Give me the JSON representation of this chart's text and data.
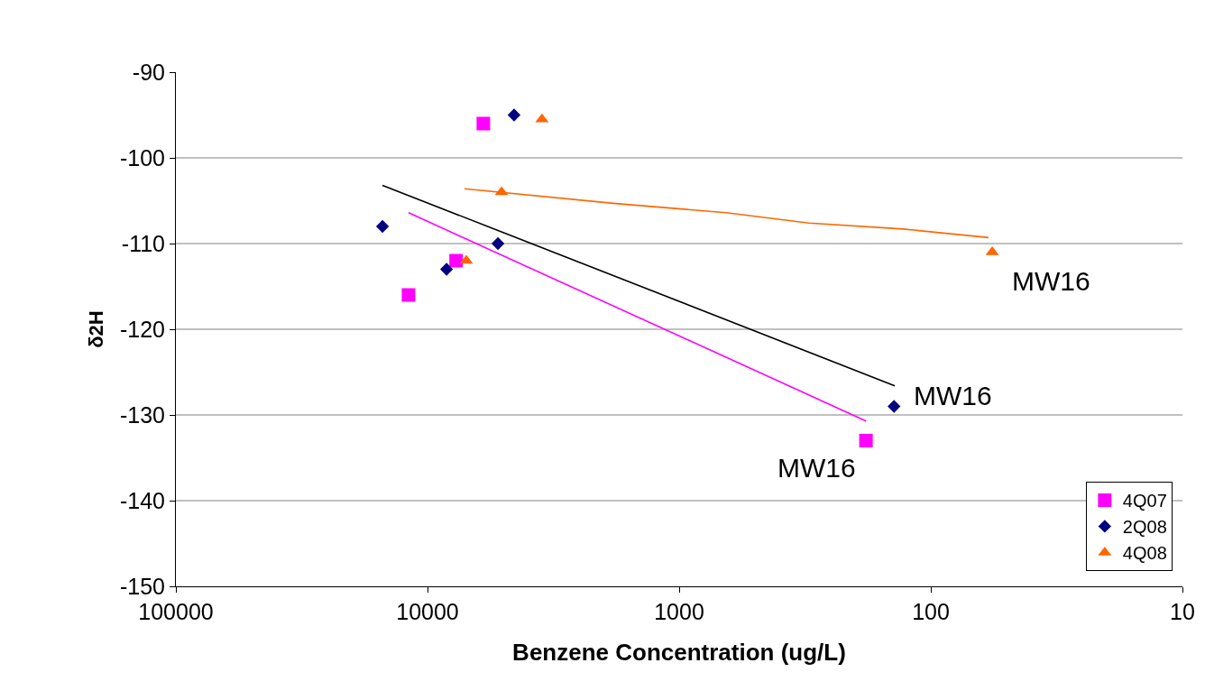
{
  "chart_data": {
    "type": "scatter",
    "xlabel": "Benzene Concentration (ug/L)",
    "ylabel": "δ2H",
    "log": "x",
    "xlim": [
      100000,
      10
    ],
    "xticks": [
      100000,
      10000,
      1000,
      100,
      10
    ],
    "ylim": [
      -150,
      -90
    ],
    "yticks": [
      -150,
      -140,
      -130,
      -120,
      -110,
      -100,
      -90
    ],
    "grid": "y",
    "legend": "bottom right",
    "series": [
      {
        "name": "4Q07",
        "color": "#ff00ff",
        "marker": "square",
        "x": [
          6000,
          11900,
          7700,
          181
        ],
        "values": [
          -96,
          -116,
          -112,
          -133
        ]
      },
      {
        "name": "2Q08",
        "color": "#000080",
        "marker": "diamond",
        "x": [
          4530,
          15100,
          5250,
          8400,
          140
        ],
        "values": [
          -95,
          -108,
          -110,
          -113,
          -129
        ]
      },
      {
        "name": "4Q08",
        "color": "#ff6600",
        "marker": "triangle",
        "x": [
          3510,
          5080,
          7010,
          57
        ],
        "values": [
          -95.5,
          -104,
          -112,
          -111
        ]
      },
      {
        "type": "line",
        "color": "#ff00ff",
        "marker": "none",
        "x": [
          11900,
          181
        ],
        "values": [
          -106.4,
          -130.7
        ]
      },
      {
        "type": "line",
        "color": "#000000",
        "marker": "none",
        "x": [
          15100,
          139
        ],
        "values": [
          -103.2,
          -126.6
        ]
      },
      {
        "type": "line",
        "color": "#ff6600",
        "marker": "none",
        "x": [
          7130,
          1830,
          652,
          305,
          129,
          59
        ],
        "values": [
          -103.6,
          -105.3,
          -106.4,
          -107.6,
          -108.3,
          -109.3
        ]
      }
    ],
    "annotations": [
      {
        "text": "MW16",
        "x": 181,
        "y": -133
      },
      {
        "text": "MW16",
        "x": 140,
        "y": -129
      },
      {
        "text": "MW16",
        "x": 57,
        "y": -111
      }
    ]
  }
}
